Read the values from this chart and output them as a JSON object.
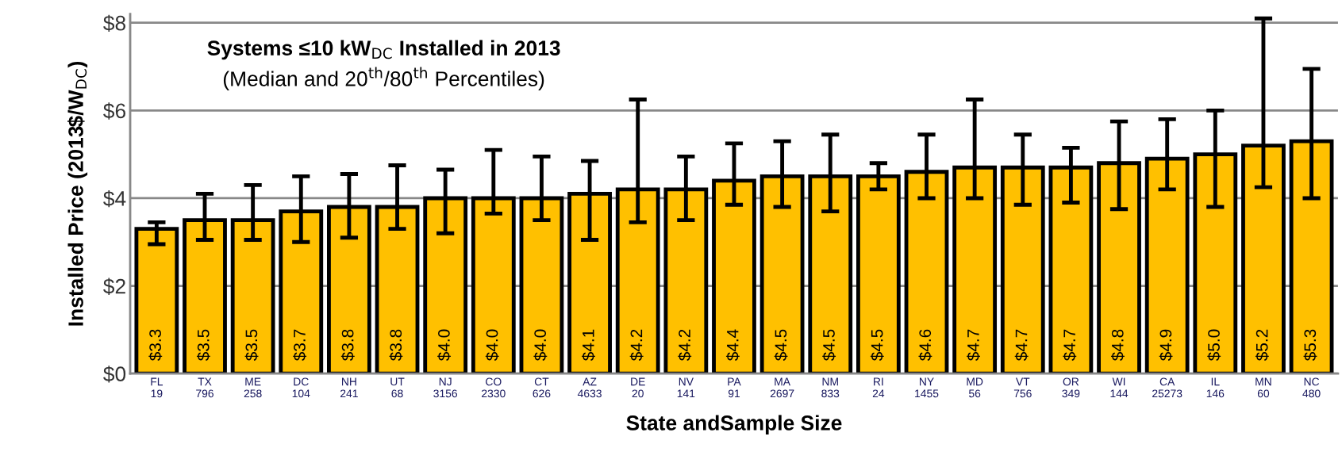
{
  "chart_data": {
    "type": "bar",
    "title": "Systems ≤10 kW$_{DC}$ Installed in 2013",
    "subtitle": "(Median and 20$^{th}$/80$^{th}$ Percentiles)",
    "xlabel": "State andSample Size",
    "ylabel": "Installed Price (2013$/W$_{DC}$)",
    "categories": [
      "FL\n19",
      "TX\n796",
      "ME\n258",
      "DC\n104",
      "NH\n241",
      "UT\n68",
      "NJ\n3156",
      "CO\n2330",
      "CT\n626",
      "AZ\n4633",
      "DE\n20",
      "NV\n141",
      "PA\n91",
      "MA\n2697",
      "NM\n833",
      "RI\n24",
      "NY\n1455",
      "MD\n56",
      "VT\n756",
      "OR\n349",
      "WI\n144",
      "CA\n25273",
      "IL\n146",
      "MN\n60",
      "NC\n480"
    ],
    "values": [
      3.3,
      3.5,
      3.5,
      3.7,
      3.8,
      3.8,
      4.0,
      4.0,
      4.0,
      4.1,
      4.2,
      4.2,
      4.4,
      4.5,
      4.5,
      4.5,
      4.6,
      4.7,
      4.7,
      4.7,
      4.8,
      4.9,
      5.0,
      5.2,
      5.3
    ],
    "value_labels": [
      "$3.3",
      "$3.5",
      "$3.5",
      "$3.7",
      "$3.8",
      "$3.8",
      "$4.0",
      "$4.0",
      "$4.0",
      "$4.1",
      "$4.2",
      "$4.2",
      "$4.4",
      "$4.5",
      "$4.5",
      "$4.5",
      "$4.6",
      "$4.7",
      "$4.7",
      "$4.7",
      "$4.8",
      "$4.9",
      "$5.0",
      "$5.2",
      "$5.3"
    ],
    "errors": [
      [
        2.95,
        3.45
      ],
      [
        3.05,
        4.1
      ],
      [
        3.05,
        4.3
      ],
      [
        3.0,
        4.5
      ],
      [
        3.1,
        4.55
      ],
      [
        3.3,
        4.75
      ],
      [
        3.2,
        4.65
      ],
      [
        3.65,
        5.1
      ],
      [
        3.5,
        4.95
      ],
      [
        3.05,
        4.85
      ],
      [
        3.45,
        6.25
      ],
      [
        3.5,
        4.95
      ],
      [
        3.85,
        5.25
      ],
      [
        3.8,
        5.3
      ],
      [
        3.7,
        5.45
      ],
      [
        4.2,
        4.8
      ],
      [
        4.0,
        5.45
      ],
      [
        4.0,
        6.25
      ],
      [
        3.85,
        5.45
      ],
      [
        3.9,
        5.15
      ],
      [
        3.75,
        5.75
      ],
      [
        4.2,
        5.8
      ],
      [
        3.8,
        6.0
      ],
      [
        4.25,
        8.1
      ],
      [
        4.0,
        6.95
      ]
    ],
    "color": "#ffc000",
    "ylim": [
      0,
      8.2
    ],
    "yticks": [
      {
        "value": 0,
        "label": "$0"
      },
      {
        "value": 2,
        "label": "$2"
      },
      {
        "value": 4,
        "label": "$4"
      },
      {
        "value": 6,
        "label": "$6"
      },
      {
        "value": 8,
        "label": "$8"
      }
    ],
    "grid": "y",
    "legend": false
  }
}
